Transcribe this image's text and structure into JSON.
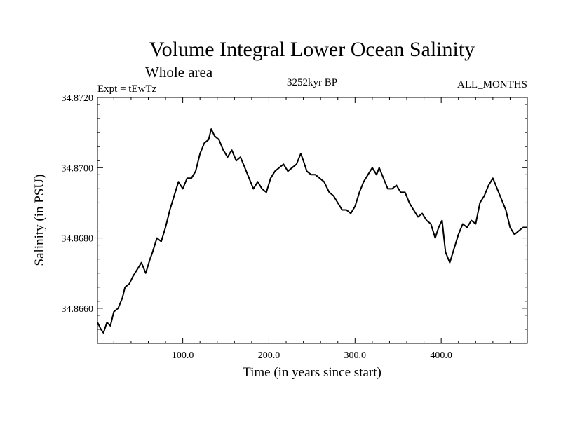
{
  "chart_data": {
    "type": "line",
    "title": "Volume Integral Lower Ocean Salinity",
    "subtitle": "Whole area",
    "experiment_label": "Expt = tEwTz",
    "period_label": "3252kyr BP",
    "season_label": "ALL_MONTHS",
    "xlabel": "Time (in years since start)",
    "ylabel": "Salinity (in PSU)",
    "xlim": [
      1,
      500
    ],
    "ylim": [
      34.865,
      34.872
    ],
    "x_ticks": [
      100,
      200,
      300,
      400
    ],
    "x_tick_labels": [
      "100.0",
      "200.0",
      "300.0",
      "400.0"
    ],
    "y_ticks": [
      34.866,
      34.868,
      34.87,
      34.872
    ],
    "y_tick_labels": [
      "34.8660",
      "34.8680",
      "34.8700",
      "34.8720"
    ],
    "series": [
      {
        "name": "Salinity",
        "color": "#000000",
        "x": [
          1,
          5,
          8,
          12,
          16,
          20,
          25,
          30,
          33,
          38,
          42,
          47,
          52,
          57,
          62,
          65,
          70,
          75,
          80,
          85,
          90,
          95,
          100,
          105,
          110,
          115,
          120,
          125,
          130,
          133,
          137,
          142,
          147,
          152,
          157,
          162,
          167,
          172,
          177,
          182,
          187,
          192,
          197,
          202,
          207,
          212,
          217,
          222,
          227,
          232,
          237,
          240,
          244,
          249,
          254,
          259,
          264,
          270,
          275,
          280,
          285,
          290,
          295,
          300,
          305,
          310,
          315,
          320,
          325,
          328,
          333,
          338,
          343,
          348,
          353,
          358,
          363,
          368,
          373,
          378,
          383,
          388,
          393,
          397,
          401,
          405,
          410,
          415,
          420,
          425,
          430,
          435,
          440,
          445,
          450,
          455,
          460,
          465,
          470,
          475,
          480,
          485,
          490,
          495,
          500
        ],
        "values": [
          34.8656,
          34.8654,
          34.8653,
          34.8656,
          34.8655,
          34.8659,
          34.866,
          34.8663,
          34.8666,
          34.8667,
          34.8669,
          34.8671,
          34.8673,
          34.867,
          34.8674,
          34.8676,
          34.868,
          34.8679,
          34.8683,
          34.8688,
          34.8692,
          34.8696,
          34.8694,
          34.8697,
          34.8697,
          34.8699,
          34.8704,
          34.8707,
          34.8708,
          34.8711,
          34.8709,
          34.8708,
          34.8705,
          34.8703,
          34.8705,
          34.8702,
          34.8703,
          34.87,
          34.8697,
          34.8694,
          34.8696,
          34.8694,
          34.8693,
          34.8697,
          34.8699,
          34.87,
          34.8701,
          34.8699,
          34.87,
          34.8701,
          34.8704,
          34.8702,
          34.8699,
          34.8698,
          34.8698,
          34.8697,
          34.8696,
          34.8693,
          34.8692,
          34.869,
          34.8688,
          34.8688,
          34.8687,
          34.8689,
          34.8693,
          34.8696,
          34.8698,
          34.87,
          34.8698,
          34.87,
          34.8697,
          34.8694,
          34.8694,
          34.8695,
          34.8693,
          34.8693,
          34.869,
          34.8688,
          34.8686,
          34.8687,
          34.8685,
          34.8684,
          34.868,
          34.8683,
          34.8685,
          34.8676,
          34.8673,
          34.8677,
          34.8681,
          34.8684,
          34.8683,
          34.8685,
          34.8684,
          34.869,
          34.8692,
          34.8695,
          34.8697,
          34.8694,
          34.8691,
          34.8688,
          34.8683,
          34.8681,
          34.8682,
          34.8683,
          34.8683
        ]
      }
    ]
  }
}
